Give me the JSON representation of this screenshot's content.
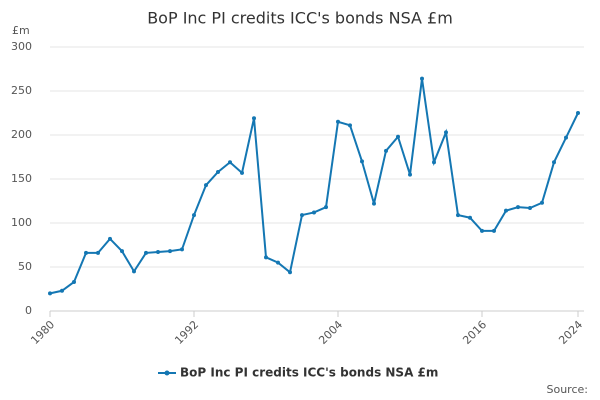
{
  "chart_data": {
    "type": "line",
    "title": "BoP Inc PI credits ICC's bonds NSA £m",
    "y_label": "£m",
    "source": "Source:",
    "x": [
      1980,
      1981,
      1982,
      1983,
      1984,
      1985,
      1986,
      1987,
      1988,
      1989,
      1990,
      1991,
      1992,
      1993,
      1994,
      1995,
      1996,
      1997,
      1998,
      1999,
      2000,
      2001,
      2002,
      2003,
      2004,
      2005,
      2006,
      2007,
      2008,
      2009,
      2010,
      2011,
      2012,
      2013,
      2014,
      2015,
      2016,
      2017,
      2018,
      2019,
      2020,
      2021,
      2022,
      2023,
      2024
    ],
    "series": [
      {
        "name": "BoP Inc PI credits ICC's bonds NSA £m",
        "color": "#1477b3",
        "values": [
          20,
          23,
          33,
          66,
          66,
          82,
          68,
          45,
          66,
          67,
          68,
          70,
          109,
          143,
          158,
          169,
          157,
          219,
          61,
          55,
          44,
          109,
          112,
          118,
          215,
          211,
          170,
          122,
          182,
          198,
          155,
          264,
          169,
          203,
          109,
          106,
          91,
          91,
          114,
          118,
          117,
          123,
          169,
          197,
          225
        ]
      }
    ],
    "xlim": [
      1980,
      2024
    ],
    "xticks": [
      1980,
      1992,
      2004,
      2016,
      2024
    ],
    "ylim": [
      0,
      300
    ],
    "yticks": [
      0,
      50,
      100,
      150,
      200,
      250,
      300
    ],
    "grid": true,
    "legend": "bottom"
  }
}
